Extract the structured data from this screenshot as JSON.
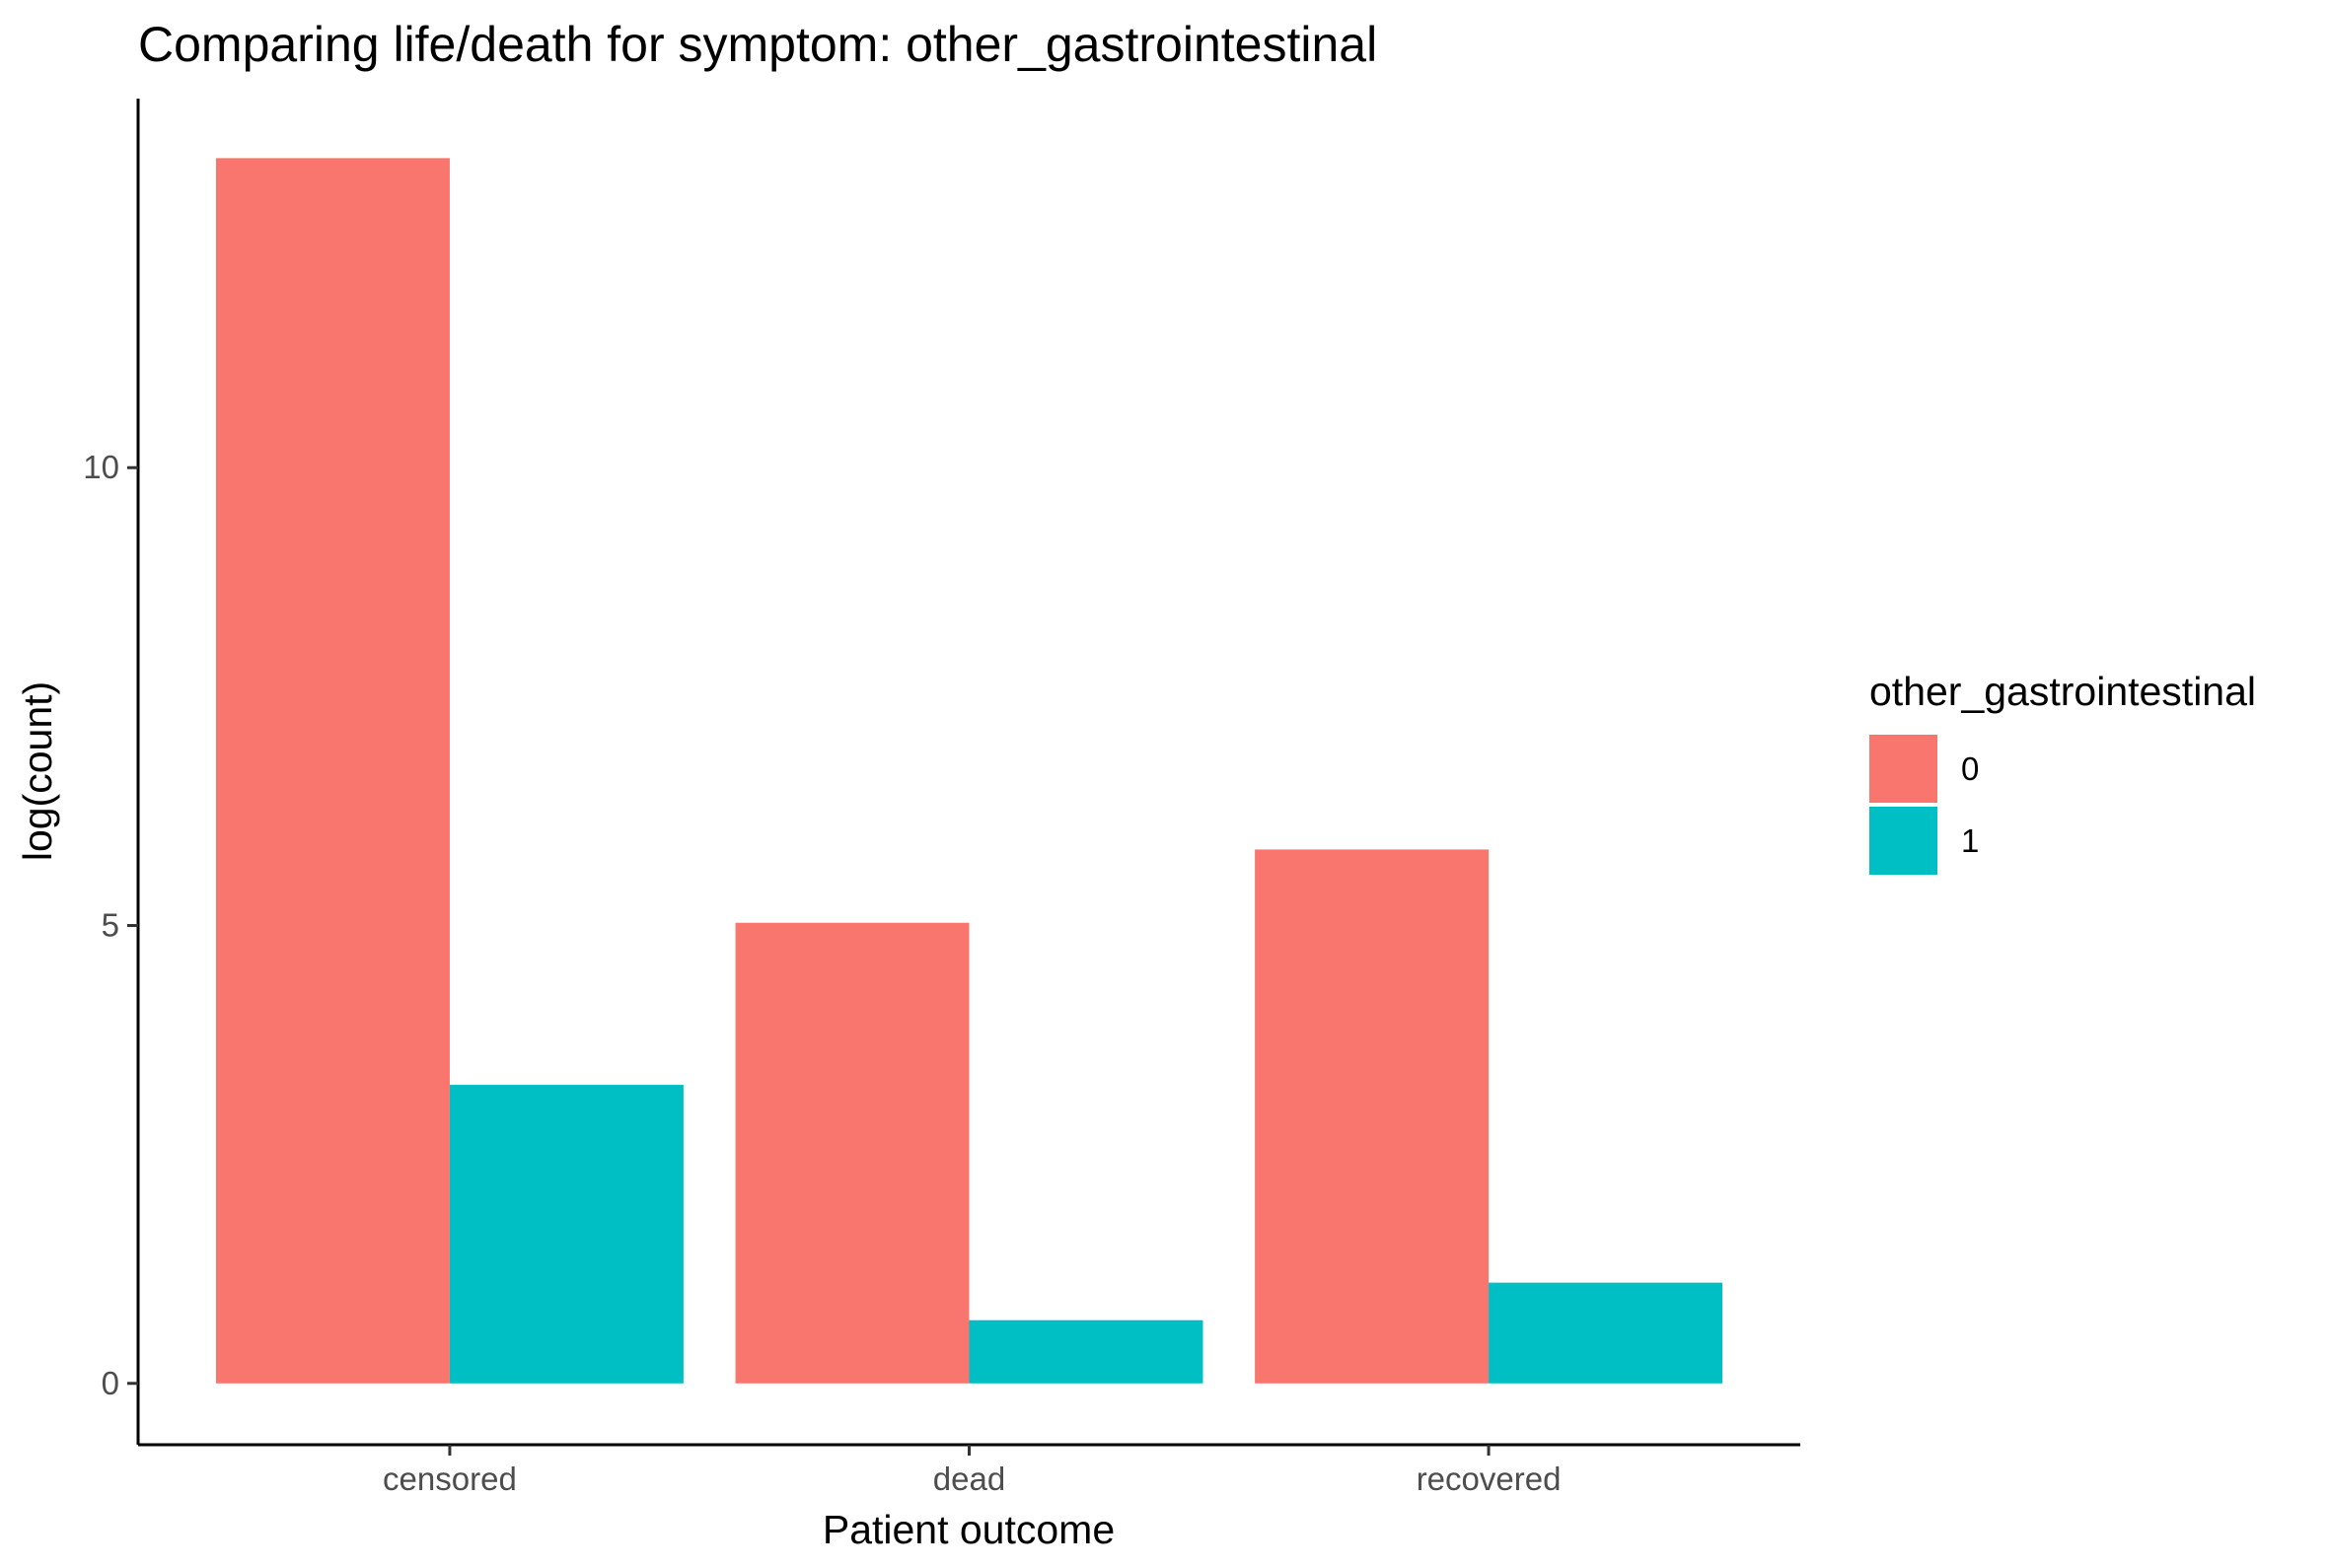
{
  "chart_data": {
    "type": "bar",
    "title": "Comparing life/death for symptom: other_gastrointestinal",
    "xlabel": "Patient outcome",
    "ylabel": "log(count)",
    "categories": [
      "censored",
      "dead",
      "recovered"
    ],
    "series": [
      {
        "name": "0",
        "color": "#F8766D",
        "values": [
          13.38,
          5.03,
          5.83
        ]
      },
      {
        "name": "1",
        "color": "#00BFC4",
        "values": [
          3.26,
          0.69,
          1.1
        ]
      }
    ],
    "ylim": [
      -0.67,
      14.03
    ],
    "yticks": [
      0,
      5,
      10
    ],
    "grid": false,
    "legend": {
      "title": "other_gastrointestinal",
      "placement": "right"
    }
  }
}
